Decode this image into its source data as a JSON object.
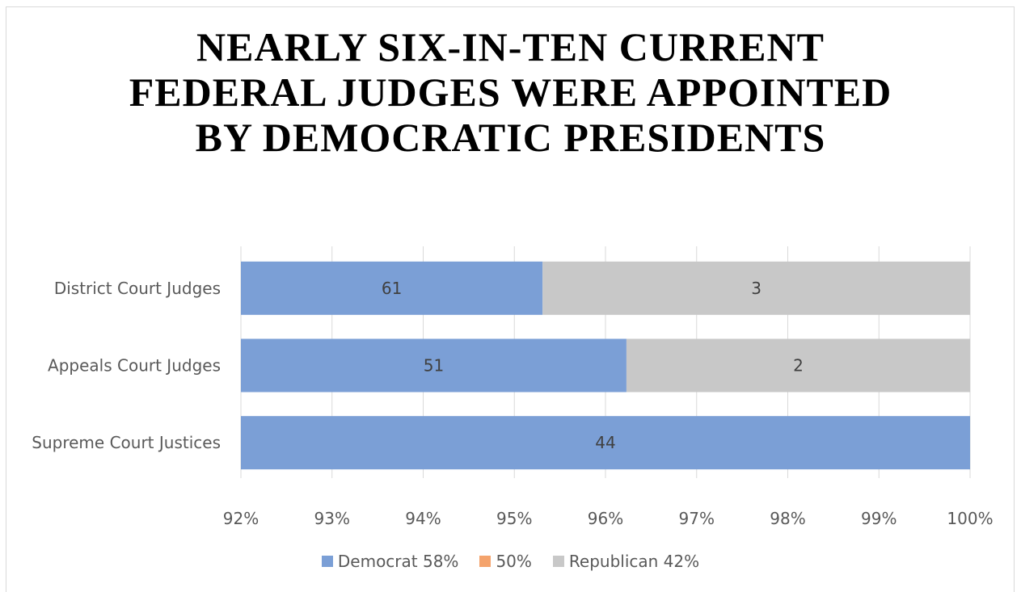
{
  "chart_data": {
    "type": "bar",
    "orientation": "horizontal",
    "stacked": true,
    "title": "NEARLY SIX-IN-TEN CURRENT FEDERAL JUDGES WERE APPOINTED BY DEMOCRATIC PRESIDENTS",
    "categories": [
      "District Court Judges",
      "Appeals Court Judges",
      "Supreme Court Justices"
    ],
    "xlim": [
      0.92,
      1.0
    ],
    "x_ticks": [
      "92%",
      "93%",
      "94%",
      "95%",
      "96%",
      "97%",
      "98%",
      "99%",
      "100%"
    ],
    "grid": true,
    "legend_position": "bottom",
    "series": [
      {
        "name": "Democrat 58%",
        "color": "#7b9fd6",
        "share_end": [
          0.9531,
          0.9623,
          1.0
        ],
        "labels": [
          "61",
          "51",
          "44"
        ]
      },
      {
        "name": "50%",
        "color": "#f4a36c",
        "share_end": [
          0.9531,
          0.9623,
          1.0
        ],
        "labels": [
          "",
          "",
          ""
        ]
      },
      {
        "name": "Republican 42%",
        "color": "#c8c8c8",
        "share_end": [
          1.0,
          1.0,
          1.0
        ],
        "labels": [
          "3",
          "2",
          ""
        ]
      }
    ]
  }
}
